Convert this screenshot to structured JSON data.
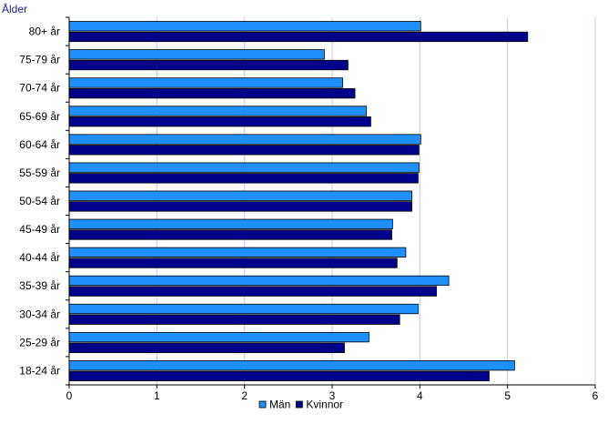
{
  "chart_data": {
    "type": "bar",
    "orientation": "horizontal",
    "ylabel": "Ålder",
    "xlabel": "",
    "title": "",
    "xlim": [
      0,
      6
    ],
    "xticks": [
      "0",
      "1",
      "2",
      "3",
      "4",
      "5",
      "6"
    ],
    "grid": "vertical",
    "legend_position": "bottom",
    "categories": [
      "80+ år",
      "75-79 år",
      "70-74 år",
      "65-69 år",
      "60-64 år",
      "55-59 år",
      "50-54 år",
      "45-49 år",
      "40-44 år",
      "35-39 år",
      "30-34 år",
      "25-29 år",
      "18-24 år"
    ],
    "series": [
      {
        "name": "Män",
        "color": "#1e90ff",
        "values": [
          4.01,
          2.91,
          3.12,
          3.39,
          4.01,
          3.99,
          3.91,
          3.69,
          3.84,
          4.33,
          3.98,
          3.42,
          5.08
        ]
      },
      {
        "name": "Kvinnor",
        "color": "#00008b",
        "values": [
          5.23,
          3.18,
          3.26,
          3.44,
          3.99,
          3.98,
          3.91,
          3.68,
          3.74,
          4.19,
          3.77,
          3.14,
          4.79
        ]
      }
    ]
  }
}
